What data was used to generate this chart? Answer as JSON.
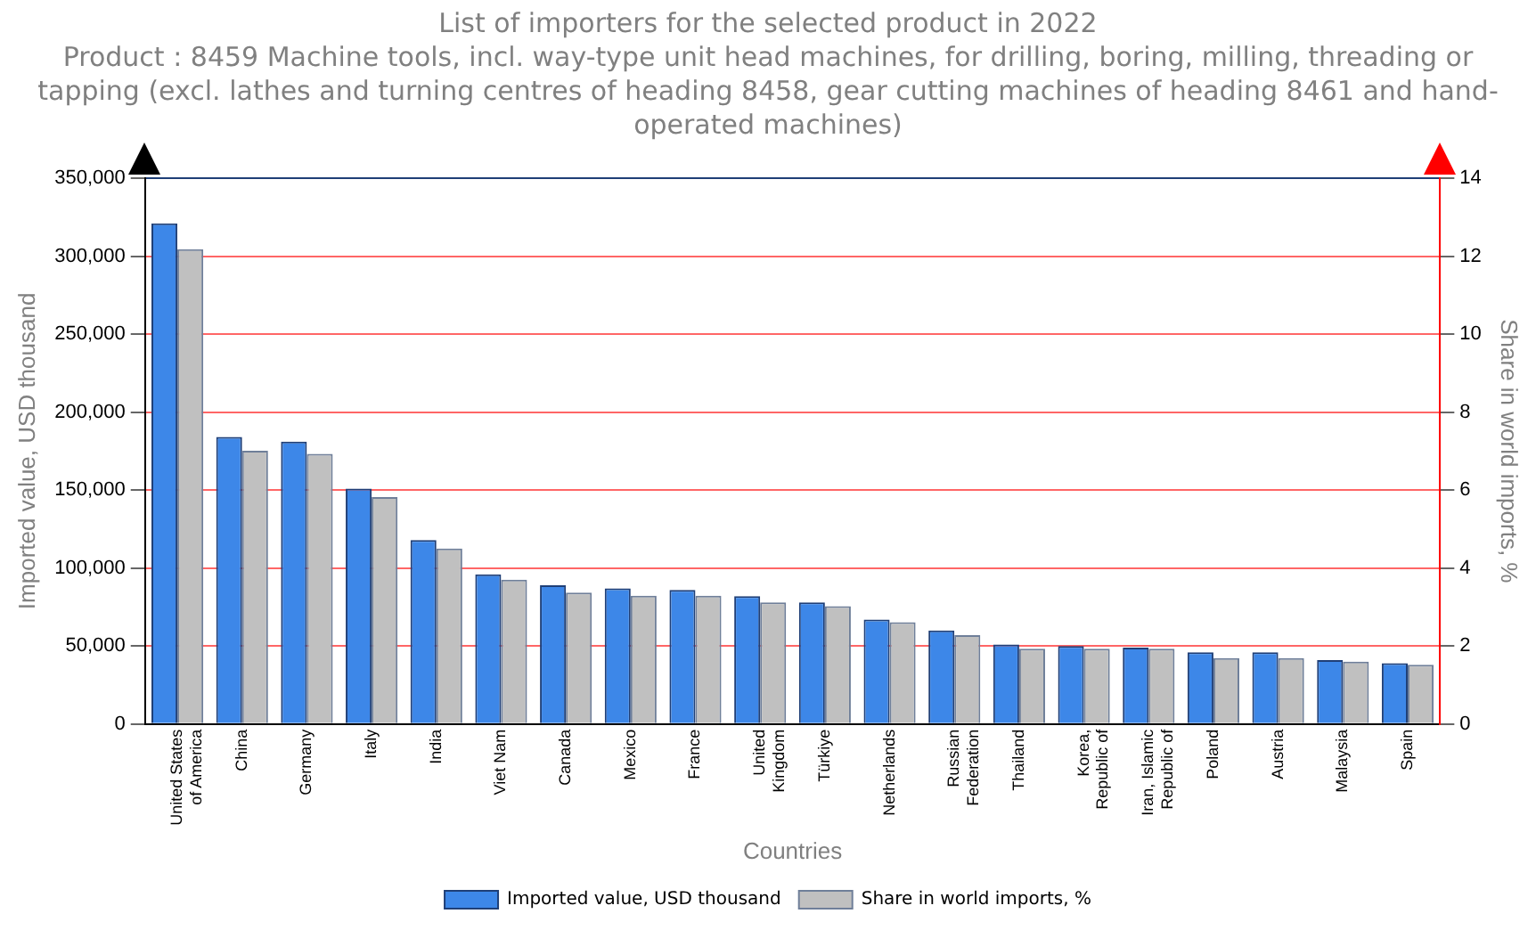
{
  "chart_data": {
    "type": "bar",
    "title": "List of importers for the selected product in 2022",
    "subtitle": "Product : 8459 Machine tools, incl. way-type unit head machines, for drilling, boring, milling, threading or tapping (excl. lathes and turning centres of heading 8458, gear cutting machines of heading 8461 and hand-operated machines)",
    "xlabel": "Countries",
    "ylabel": "Imported value, USD thousand",
    "y2label": "Share in world imports, %",
    "categories": [
      "United States of America",
      "China",
      "Germany",
      "Italy",
      "India",
      "Viet Nam",
      "Canada",
      "Mexico",
      "France",
      "United Kingdom",
      "Türkiye",
      "Netherlands",
      "Russian Federation",
      "Thailand",
      "Korea, Republic of",
      "Iran, Islamic Republic of",
      "Poland",
      "Austria",
      "Malaysia",
      "Spain"
    ],
    "series": [
      {
        "name": "Imported value, USD thousand",
        "color": "#3d87e8",
        "values": [
          321000,
          184000,
          181000,
          151000,
          118000,
          96000,
          89000,
          87000,
          86000,
          82000,
          78000,
          67000,
          60000,
          51000,
          50000,
          49000,
          46000,
          46000,
          41000,
          39000
        ]
      },
      {
        "name": "Share in world imports, %",
        "color": "#c0c0c0",
        "axis": "y2",
        "values": [
          12.18,
          7.01,
          6.93,
          5.82,
          4.5,
          3.7,
          3.37,
          3.29,
          3.29,
          3.12,
          3.02,
          2.61,
          2.28,
          1.93,
          1.93,
          1.93,
          1.69,
          1.69,
          1.6,
          1.52
        ]
      }
    ],
    "ylim": [
      0,
      350000
    ],
    "yticks": [
      {
        "value": 0,
        "label": "0"
      },
      {
        "value": 50000,
        "label": "50,000"
      },
      {
        "value": 100000,
        "label": "100,000"
      },
      {
        "value": 150000,
        "label": "150,000"
      },
      {
        "value": 200000,
        "label": "200,000"
      },
      {
        "value": 250000,
        "label": "250,000"
      },
      {
        "value": 300000,
        "label": "300,000"
      },
      {
        "value": 350000,
        "label": "350,000"
      }
    ],
    "y2lim": [
      0,
      14
    ],
    "y2ticks": [
      0,
      2,
      4,
      6,
      8,
      10,
      12,
      14
    ],
    "grid": "y",
    "legend": "bottom"
  }
}
